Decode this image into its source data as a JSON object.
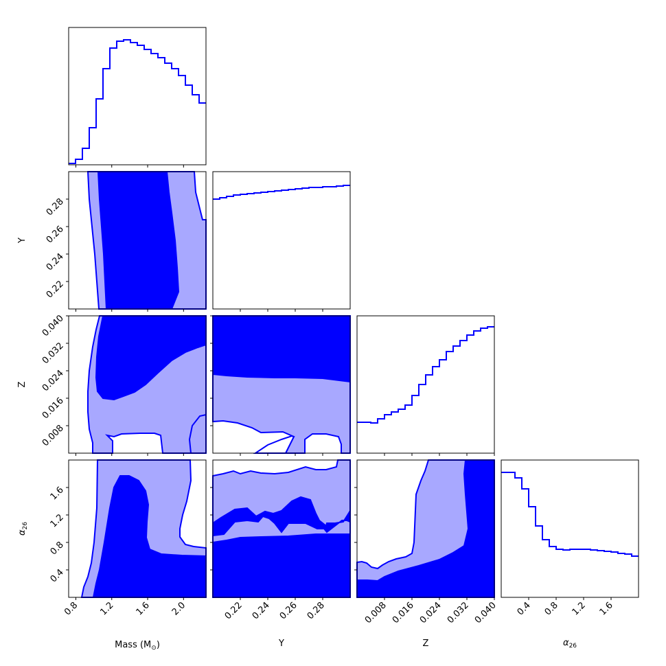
{
  "chart_data": {
    "type": "corner",
    "parameters": [
      {
        "key": "mass",
        "label": "Mass (M",
        "label_sub": "⊙",
        "label_tail": ")",
        "range": [
          0.72,
          2.25
        ],
        "ticks": [
          0.8,
          1.2,
          1.6,
          2.0
        ],
        "tick_labels": [
          "0.8",
          "1.2",
          "1.6",
          "2.0"
        ]
      },
      {
        "key": "Y",
        "label": "Y",
        "label_sub": "",
        "label_tail": "",
        "range": [
          0.2,
          0.3
        ],
        "ticks": [
          0.22,
          0.24,
          0.26,
          0.28
        ],
        "tick_labels": [
          "0.22",
          "0.24",
          "0.26",
          "0.28"
        ]
      },
      {
        "key": "Z",
        "label": "Z",
        "label_sub": "",
        "label_tail": "",
        "range": [
          0.0,
          0.04
        ],
        "ticks": [
          0.008,
          0.016,
          0.024,
          0.032,
          0.04
        ],
        "tick_labels": [
          "0.008",
          "0.016",
          "0.024",
          "0.032",
          "0.040"
        ]
      },
      {
        "key": "alpha26",
        "label": "α",
        "label_sub": "26",
        "label_tail": "",
        "range": [
          0.0,
          2.0
        ],
        "ticks": [
          0.4,
          0.8,
          1.2,
          1.6
        ],
        "tick_labels": [
          "0.4",
          "0.8",
          "1.2",
          "1.6"
        ]
      }
    ],
    "histograms": [
      {
        "param": "mass",
        "relative_heights": [
          0.01,
          0.04,
          0.12,
          0.27,
          0.48,
          0.7,
          0.85,
          0.9,
          0.91,
          0.89,
          0.87,
          0.84,
          0.81,
          0.78,
          0.74,
          0.7,
          0.65,
          0.58,
          0.51,
          0.45
        ]
      },
      {
        "param": "Y",
        "relative_heights": [
          0.8,
          0.81,
          0.82,
          0.83,
          0.835,
          0.84,
          0.845,
          0.85,
          0.855,
          0.86,
          0.865,
          0.87,
          0.875,
          0.88,
          0.885,
          0.885,
          0.89,
          0.89,
          0.895,
          0.9
        ]
      },
      {
        "param": "Z",
        "relative_heights": [
          0.225,
          0.225,
          0.22,
          0.25,
          0.28,
          0.3,
          0.32,
          0.35,
          0.42,
          0.5,
          0.57,
          0.63,
          0.68,
          0.74,
          0.78,
          0.82,
          0.86,
          0.89,
          0.91,
          0.92
        ]
      },
      {
        "param": "alpha26",
        "relative_heights": [
          0.91,
          0.91,
          0.87,
          0.79,
          0.66,
          0.52,
          0.42,
          0.37,
          0.35,
          0.345,
          0.35,
          0.35,
          0.35,
          0.345,
          0.34,
          0.335,
          0.33,
          0.32,
          0.315,
          0.3
        ]
      }
    ],
    "contour_levels": [
      "1-sigma (dark)",
      "2-sigma (light)"
    ],
    "colors": {
      "line": "#0000ff",
      "inner_fill": "#0000ff",
      "outer_fill": "#a8a8ff",
      "frame": "#000000"
    },
    "grid": false
  }
}
